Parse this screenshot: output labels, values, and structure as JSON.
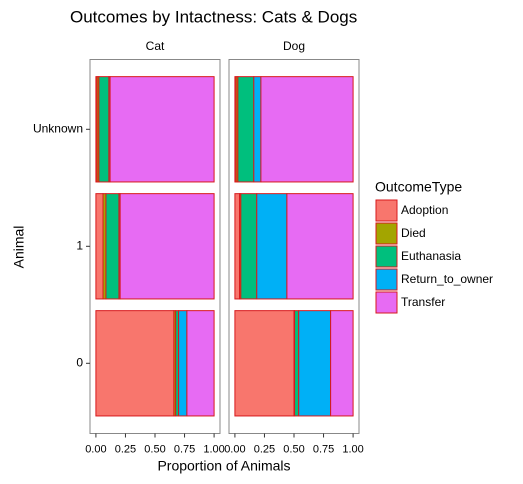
{
  "chart_data": {
    "type": "bar",
    "title": "Outcomes by Intactness: Cats & Dogs",
    "xlabel": "Proportion of Animals",
    "ylabel": "Animal",
    "legend_title": "OutcomeType",
    "facets": [
      "Cat",
      "Dog"
    ],
    "categories": [
      "0",
      "1",
      "Unknown"
    ],
    "xlim": [
      0,
      1
    ],
    "xticks": [
      {
        "value": 0,
        "label": "0.00"
      },
      {
        "value": 0.25,
        "label": "0.25"
      },
      {
        "value": 0.5,
        "label": "0.50"
      },
      {
        "value": 0.75,
        "label": "0.75"
      },
      {
        "value": 1,
        "label": "1.00"
      }
    ],
    "outline": "#d7191c",
    "series": [
      {
        "name": "Adoption",
        "color": "#f8766d",
        "values": [
          [
            0.66,
            0.06,
            0.01
          ],
          [
            0.5,
            0.04,
            0.01
          ]
        ]
      },
      {
        "name": "Died",
        "color": "#a3a500",
        "values": [
          [
            0.015,
            0.025,
            0.015
          ],
          [
            0.005,
            0.01,
            0.015
          ]
        ]
      },
      {
        "name": "Euthanasia",
        "color": "#00bf7d",
        "values": [
          [
            0.025,
            0.11,
            0.085
          ],
          [
            0.035,
            0.135,
            0.135
          ]
        ]
      },
      {
        "name": "Return_to_owner",
        "color": "#00b0f6",
        "values": [
          [
            0.07,
            0.01,
            0.01
          ],
          [
            0.27,
            0.255,
            0.06
          ]
        ]
      },
      {
        "name": "Transfer",
        "color": "#e76bf3",
        "values": [
          [
            0.23,
            0.795,
            0.88
          ],
          [
            0.19,
            0.56,
            0.78
          ]
        ]
      }
    ]
  }
}
